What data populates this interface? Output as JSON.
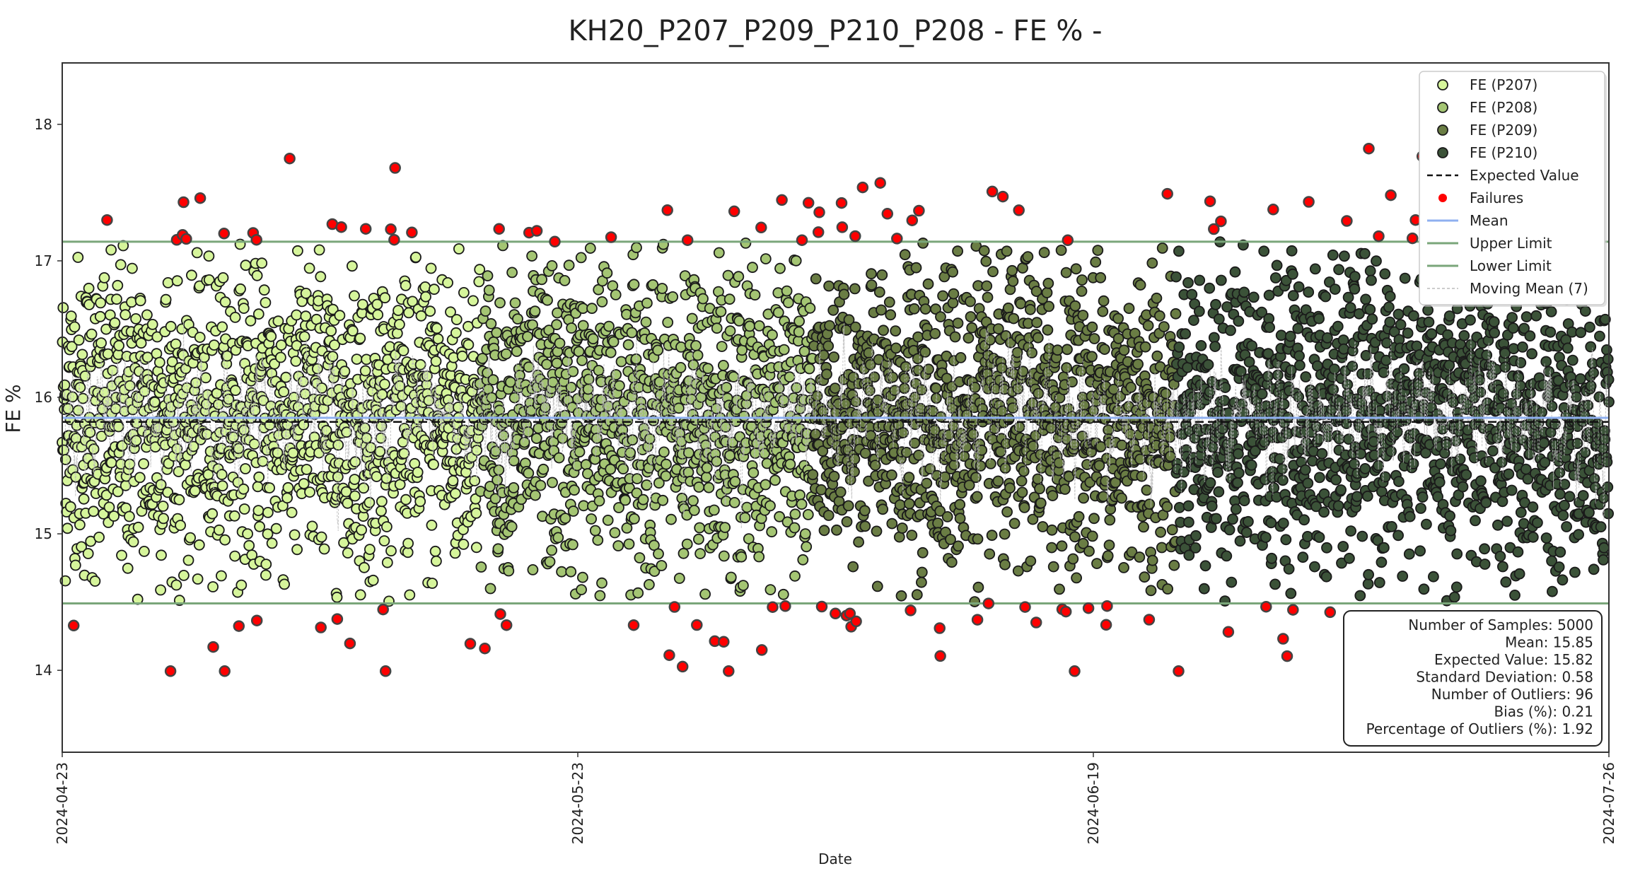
{
  "chart_data": {
    "type": "scatter",
    "title": "KH20_P207_P209_P210_P208 - FE % -",
    "xlabel": "Date",
    "ylabel": "FE %",
    "ylim": [
      13.4,
      18.45
    ],
    "yticks": [
      14,
      15,
      16,
      17,
      18
    ],
    "xticks": [
      "2024-04-23",
      "2024-05-23",
      "2024-06-19",
      "2024-07-26"
    ],
    "grid": false,
    "legend_position": "top-right",
    "n_samples": 5000,
    "mean": 15.85,
    "expected_value": 15.82,
    "std": 0.58,
    "upper_limit": 17.14,
    "lower_limit": 14.49,
    "moving_mean_window": 7,
    "series": [
      {
        "name": "FE (P207)",
        "color": "#d6f59b",
        "share": 0.27
      },
      {
        "name": "FE (P208)",
        "color": "#a4c573",
        "share": 0.215
      },
      {
        "name": "FE (P209)",
        "color": "#6a7d44",
        "share": 0.235
      },
      {
        "name": "FE (P210)",
        "color": "#3b5238",
        "share": 0.28
      }
    ],
    "failure_color": "#ff0000",
    "mean_color": "#8fb0f0",
    "limit_color": "#7aa67a",
    "legend": [
      "FE (P207)",
      "FE (P208)",
      "FE (P209)",
      "FE (P210)",
      "Expected Value",
      "Failures",
      "Mean",
      "Upper Limit",
      "Lower Limit",
      "Moving Mean (7)"
    ],
    "stats": [
      "Number of Samples: 5000",
      "Mean: 15.85",
      "Expected Value: 15.82",
      "Standard Deviation: 0.58",
      "Number of Outliers: 96",
      "Bias (%): 0.21",
      "Percentage of Outliers (%): 1.92"
    ]
  }
}
